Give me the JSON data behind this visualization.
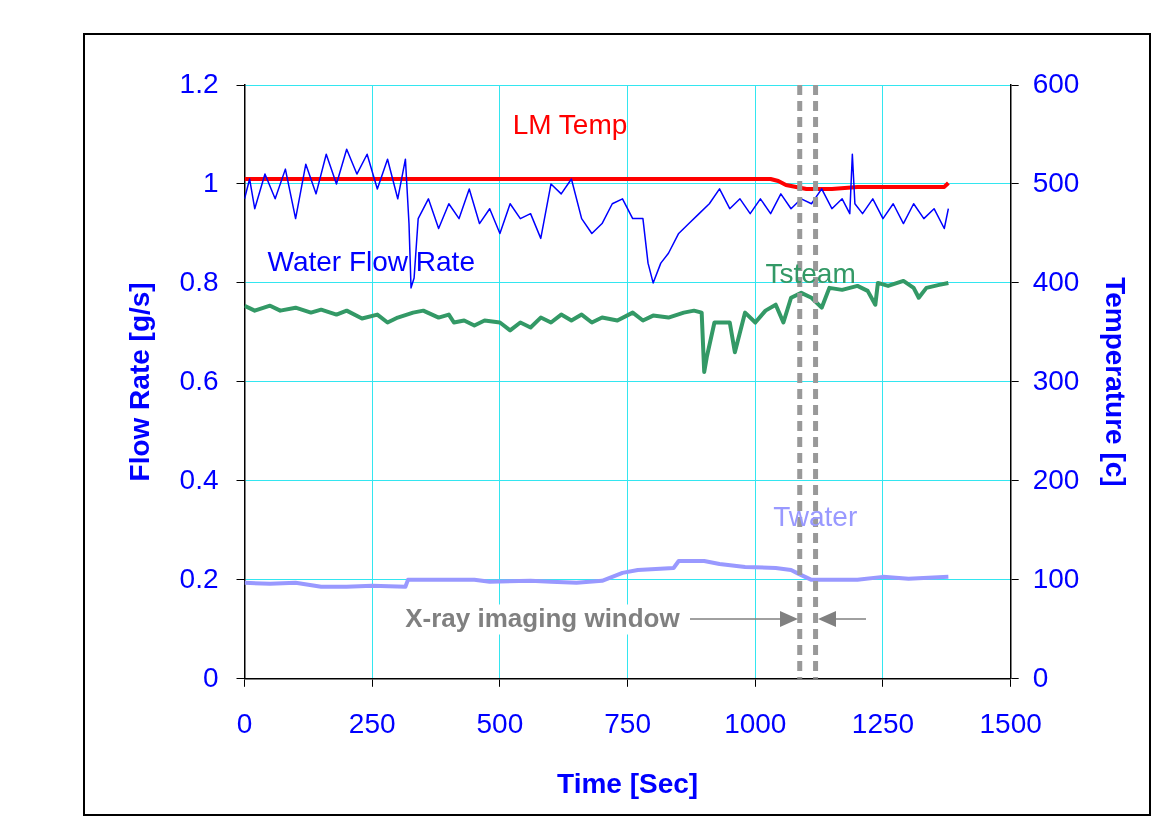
{
  "chart_data": {
    "type": "line",
    "xlabel": "Time [Sec]",
    "ylabel": "Flow Rate [g/s]",
    "y2label": "Temperature [c]",
    "xlim": [
      0,
      1500
    ],
    "xticks": [
      0,
      250,
      500,
      750,
      1000,
      1250,
      1500
    ],
    "ylim": [
      0,
      1.2
    ],
    "yticks": [
      0,
      0.2,
      0.4,
      0.6,
      0.8,
      1,
      1.2
    ],
    "y2lim": [
      0,
      600
    ],
    "y2ticks": [
      0,
      100,
      200,
      300,
      400,
      500,
      600
    ],
    "grid": true,
    "legend": false,
    "marker": "none",
    "line_style": "solid",
    "series": [
      {
        "name": "Water Flow Rate",
        "color": "#0000ff",
        "axis": "y",
        "x": [
          0,
          10,
          20,
          40,
          60,
          80,
          100,
          120,
          140,
          160,
          180,
          200,
          220,
          240,
          260,
          280,
          300,
          315,
          322,
          326,
          332,
          340,
          360,
          380,
          400,
          420,
          440,
          460,
          480,
          500,
          520,
          540,
          560,
          580,
          600,
          620,
          640,
          660,
          680,
          700,
          720,
          740,
          760,
          780,
          790,
          800,
          815,
          830,
          850,
          870,
          890,
          910,
          930,
          950,
          970,
          990,
          1010,
          1030,
          1050,
          1070,
          1090,
          1110,
          1130,
          1150,
          1170,
          1185,
          1190,
          1195,
          1210,
          1230,
          1250,
          1270,
          1290,
          1310,
          1330,
          1350,
          1370,
          1378
        ],
        "values": [
          0.97,
          1.01,
          0.95,
          1.02,
          0.97,
          1.03,
          0.93,
          1.04,
          0.98,
          1.06,
          1.0,
          1.07,
          1.02,
          1.06,
          0.99,
          1.05,
          0.97,
          1.05,
          0.92,
          0.79,
          0.81,
          0.93,
          0.97,
          0.91,
          0.96,
          0.93,
          0.99,
          0.92,
          0.95,
          0.9,
          0.96,
          0.93,
          0.94,
          0.89,
          1.0,
          0.98,
          1.01,
          0.93,
          0.9,
          0.92,
          0.96,
          0.97,
          0.93,
          0.93,
          0.84,
          0.8,
          0.84,
          0.86,
          0.9,
          0.92,
          0.94,
          0.96,
          0.99,
          0.95,
          0.97,
          0.94,
          0.97,
          0.94,
          0.98,
          0.95,
          0.97,
          0.96,
          0.99,
          0.95,
          0.97,
          0.94,
          1.06,
          0.96,
          0.94,
          0.97,
          0.93,
          0.96,
          0.92,
          0.96,
          0.93,
          0.95,
          0.91,
          0.95
        ]
      },
      {
        "name": "LM Temp",
        "color": "#ff0000",
        "axis": "y2",
        "x": [
          0,
          1030,
          1045,
          1060,
          1080,
          1100,
          1150,
          1200,
          1370,
          1378
        ],
        "values": [
          505,
          505,
          503,
          499,
          497,
          495,
          495,
          497,
          497,
          501
        ]
      },
      {
        "name": "Tsteam",
        "color": "#339966",
        "axis": "y2",
        "x": [
          0,
          20,
          50,
          70,
          100,
          130,
          150,
          180,
          200,
          230,
          260,
          280,
          300,
          330,
          350,
          380,
          400,
          410,
          430,
          450,
          470,
          500,
          520,
          540,
          560,
          580,
          600,
          620,
          640,
          660,
          680,
          700,
          730,
          760,
          780,
          800,
          830,
          860,
          880,
          895,
          900,
          905,
          920,
          950,
          960,
          980,
          1000,
          1020,
          1040,
          1055,
          1070,
          1090,
          1110,
          1130,
          1145,
          1170,
          1200,
          1220,
          1235,
          1240,
          1260,
          1290,
          1310,
          1320,
          1335,
          1360,
          1378
        ],
        "values": [
          377,
          372,
          377,
          372,
          375,
          370,
          373,
          368,
          372,
          364,
          368,
          360,
          365,
          370,
          372,
          365,
          368,
          360,
          362,
          357,
          362,
          360,
          352,
          360,
          355,
          365,
          360,
          368,
          362,
          368,
          360,
          365,
          362,
          370,
          362,
          367,
          365,
          370,
          372,
          370,
          310,
          325,
          360,
          360,
          330,
          370,
          360,
          372,
          378,
          360,
          385,
          390,
          385,
          375,
          395,
          393,
          397,
          392,
          378,
          400,
          397,
          402,
          395,
          385,
          395,
          398,
          400
        ]
      },
      {
        "name": "Twater",
        "color": "#9999ff",
        "axis": "y2",
        "x": [
          0,
          50,
          100,
          150,
          200,
          250,
          315,
          320,
          450,
          480,
          560,
          600,
          650,
          700,
          740,
          770,
          840,
          850,
          900,
          930,
          980,
          1040,
          1070,
          1085,
          1110,
          1200,
          1250,
          1300,
          1378
        ],
        "values": [
          97,
          96,
          97,
          93,
          93,
          94,
          93,
          100,
          100,
          98,
          99,
          98,
          97,
          99,
          107,
          110,
          112,
          119,
          119,
          116,
          113,
          112,
          110,
          106,
          100,
          100,
          103,
          101,
          103
        ]
      }
    ],
    "ref_lines": [
      {
        "axis": "x",
        "value": 1087,
        "label": "X-ray imaging window",
        "color": "#999999",
        "line_style": "dashed"
      },
      {
        "axis": "x",
        "value": 1118,
        "color": "#999999",
        "line_style": "dashed"
      }
    ]
  }
}
